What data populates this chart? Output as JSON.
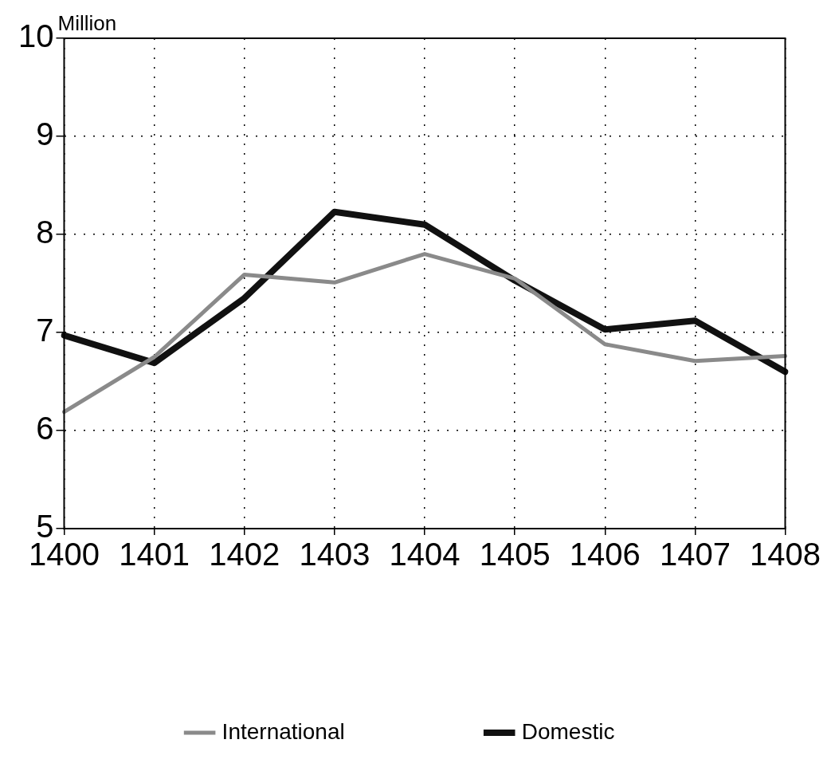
{
  "chart_data": {
    "type": "line",
    "ylabel": "Million",
    "categories": [
      "1400",
      "1401",
      "1402",
      "1403",
      "1404",
      "1405",
      "1406",
      "1407",
      "1408"
    ],
    "series": [
      {
        "name": "International",
        "color": "#8a8a8a",
        "values": [
          6.19,
          6.75,
          7.59,
          7.51,
          7.8,
          7.55,
          6.88,
          6.71,
          6.76
        ]
      },
      {
        "name": "Domestic",
        "color": "#111111",
        "values": [
          6.97,
          6.69,
          7.35,
          8.23,
          8.1,
          7.53,
          7.03,
          7.12,
          6.6
        ]
      }
    ],
    "ylim": [
      5,
      10
    ],
    "yticks": [
      5,
      6,
      7,
      8,
      9,
      10
    ],
    "grid": true,
    "legend": "bottom",
    "marker": "none",
    "line_style": "solid"
  }
}
